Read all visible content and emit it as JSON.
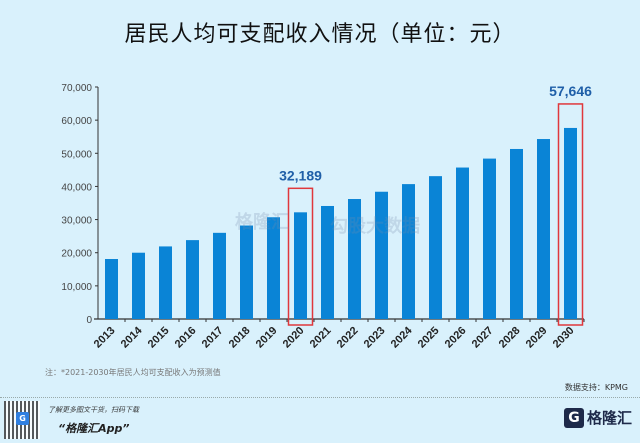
{
  "chart_data": {
    "type": "bar",
    "title": "居民人均可支配收入情况（单位：元）",
    "xlabel": "",
    "ylabel": "",
    "ylim": [
      0,
      70000
    ],
    "yticks": [
      0,
      10000,
      20000,
      30000,
      40000,
      50000,
      60000,
      70000
    ],
    "ytick_labels": [
      "0",
      "10,000",
      "20,000",
      "30,000",
      "40,000",
      "50,000",
      "60,000",
      "70,000"
    ],
    "categories": [
      "2013",
      "2014",
      "2015",
      "2016",
      "2017",
      "2018",
      "2019",
      "2020",
      "2021",
      "2022",
      "2023",
      "2024",
      "2025",
      "2026",
      "2027",
      "2028",
      "2029",
      "2030"
    ],
    "values": [
      18100,
      20000,
      21900,
      23800,
      26000,
      28200,
      30700,
      32189,
      34100,
      36200,
      38400,
      40700,
      43100,
      45700,
      48400,
      51300,
      54300,
      57646
    ],
    "bar_color": "#0a84d6",
    "highlight_color": "#e0383c",
    "label_color": "#1f5fa8",
    "annotations": [
      {
        "category": "2020",
        "label": "32,189"
      },
      {
        "category": "2030",
        "label": "57,646"
      }
    ],
    "grid": false
  },
  "footer": {
    "note": "注：*2021-2030年居民人均可支配收入为预测值",
    "source": "数据支持：KPMG",
    "promo_line1": "了解更多图文干货，扫码下载",
    "promo_line2": "“格隆汇App”",
    "logo_text": "格隆汇",
    "logo_mark": "G",
    "qr_badge": "G"
  },
  "watermark": {
    "left": "格隆汇",
    "right": "勾股大数据"
  }
}
